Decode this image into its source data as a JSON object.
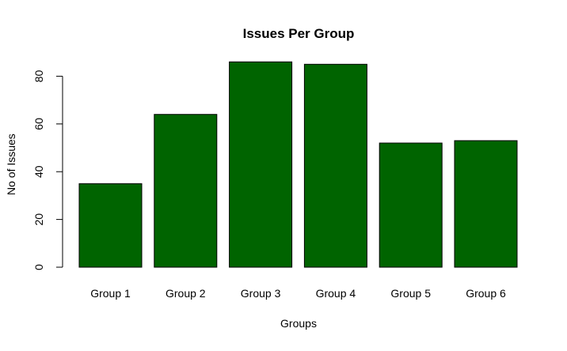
{
  "chart_data": {
    "type": "bar",
    "title": "Issues Per Group",
    "xlabel": "Groups",
    "ylabel": "No of Issues",
    "categories": [
      "Group 1",
      "Group 2",
      "Group 3",
      "Group 4",
      "Group 5",
      "Group 6"
    ],
    "values": [
      35,
      64,
      86,
      85,
      52,
      53
    ],
    "ylim": [
      0,
      90
    ],
    "yticks": [
      0,
      20,
      40,
      60,
      80
    ],
    "bar_color": "#006400",
    "bar_edge_color": "#000000",
    "grid": false,
    "legend": "none"
  }
}
